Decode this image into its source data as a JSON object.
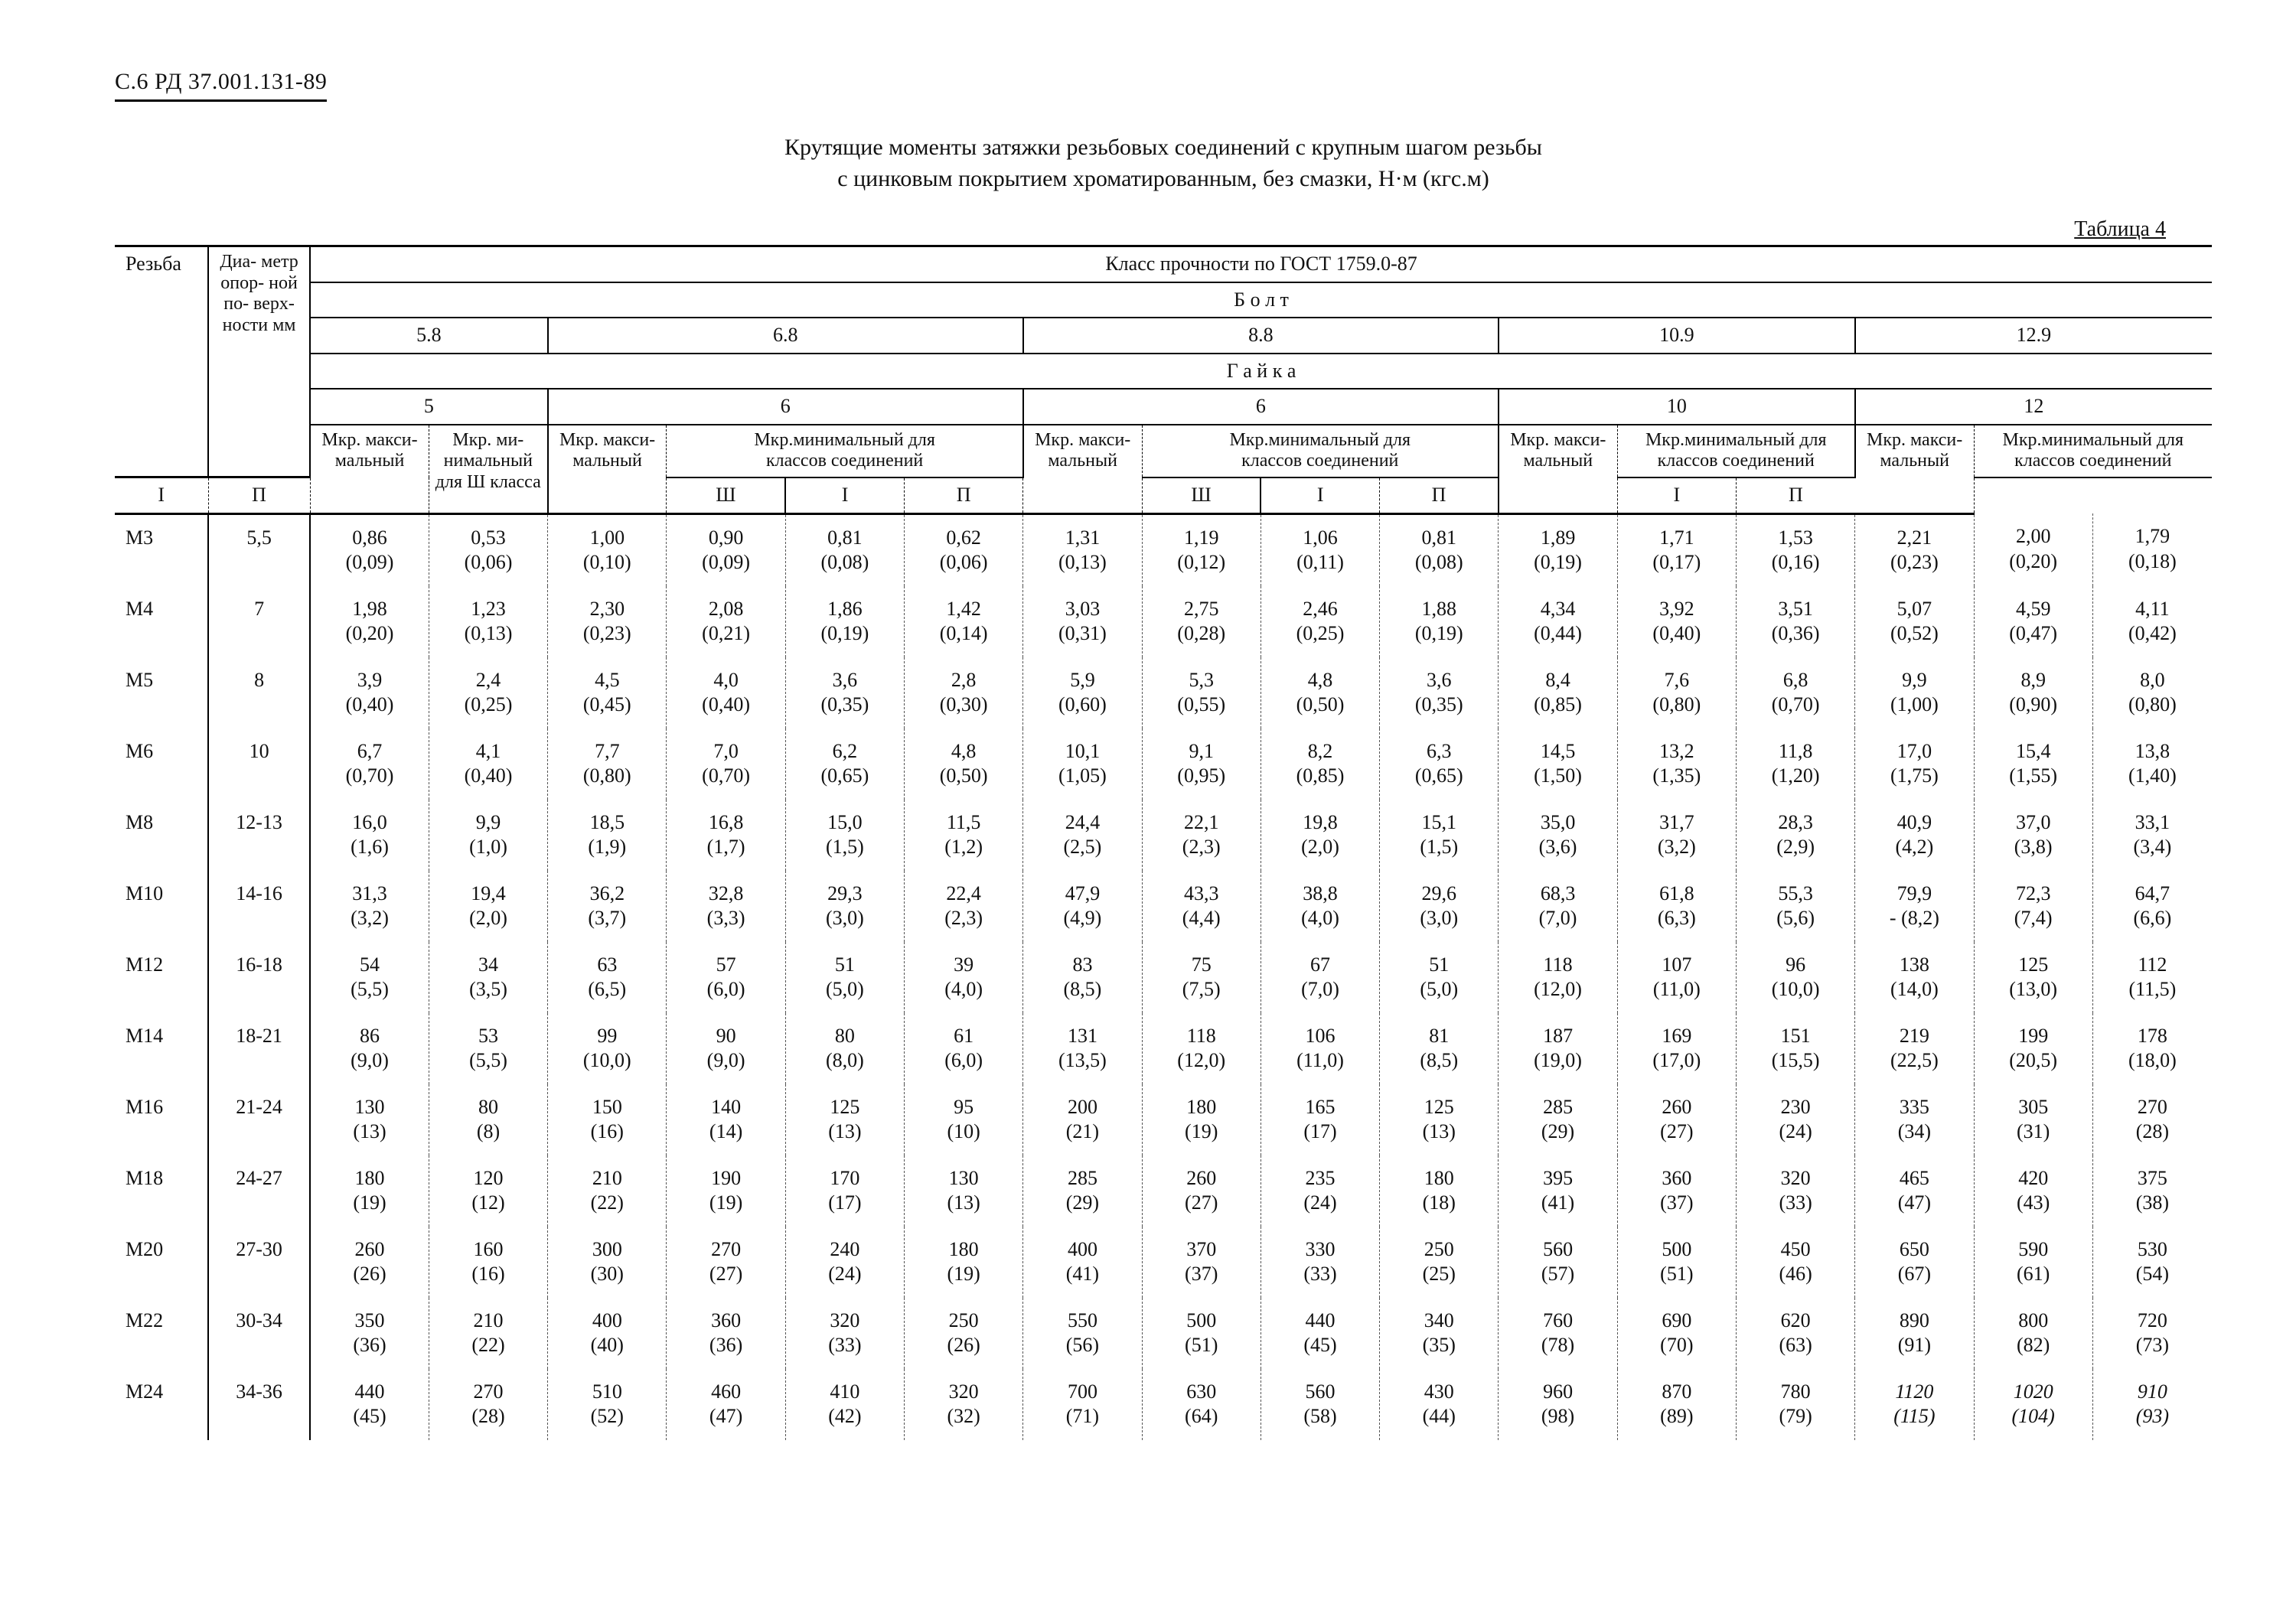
{
  "doc_code": "С.6  РД 37.001.131-89",
  "title": "Крутящие моменты затяжки резьбовых соединений с крупным шагом резьбы\nс цинковым покрытием хроматированным, без смазки, Н·м (кгс.м)",
  "table_caption": "Таблица 4",
  "header": {
    "gost_line": "Класс прочности по ГОСТ 1759.0-87",
    "bolt": "Б о л т",
    "nut": "Г а й к а",
    "col_thread": "Резьба",
    "col_diam": "Диа-\nметр\nопор-\nной\nпо-\nверх-\nности\nмм",
    "bolt_classes": [
      "5.8",
      "6.8",
      "8.8",
      "10.9",
      "12.9"
    ],
    "nut_classes": [
      "5",
      "6",
      "6",
      "10",
      "12"
    ],
    "mkr_max": "Мкр.\nмакси-\nмальный",
    "mkr_min3": "Мкр. ми-\nнимальный\nдля Ш\nкласса",
    "mkr_min_line1": "Мкр.минимальный для",
    "mkr_min_line2": "классов соединений",
    "mkr_min_cols3": [
      "I",
      "П",
      "Ш"
    ],
    "mkr_min_cols2": [
      "I",
      "П"
    ],
    "mkr_min_short": "Мкр.минимальный\nдля классов\nсоединений"
  },
  "rows": [
    {
      "thread": "М3",
      "diam": "5,5",
      "c": [
        "0,86\n(0,09)",
        "0,53\n(0,06)",
        "1,00\n(0,10)",
        "0,90\n(0,09)",
        "0,81\n(0,08)",
        "0,62\n(0,06)",
        "1,31\n(0,13)",
        "1,19\n(0,12)",
        "1,06\n(0,11)",
        "0,81\n(0,08)",
        "1,89\n(0,19)",
        "1,71\n(0,17)",
        "1,53\n(0,16)",
        "2,21\n(0,23)",
        "2,00\n(0,20)",
        "1,79\n(0,18)"
      ]
    },
    {
      "thread": "М4",
      "diam": "7",
      "c": [
        "1,98\n(0,20)",
        "1,23\n(0,13)",
        "2,30\n(0,23)",
        "2,08\n(0,21)",
        "1,86\n(0,19)",
        "1,42\n(0,14)",
        "3,03\n(0,31)",
        "2,75\n(0,28)",
        "2,46\n(0,25)",
        "1,88\n(0,19)",
        "4,34\n(0,44)",
        "3,92\n(0,40)",
        "3,51\n(0,36)",
        "5,07\n(0,52)",
        "4,59\n(0,47)",
        "4,11\n(0,42)"
      ]
    },
    {
      "thread": "М5",
      "diam": "8",
      "c": [
        "3,9\n(0,40)",
        "2,4\n(0,25)",
        "4,5\n(0,45)",
        "4,0\n(0,40)",
        "3,6\n(0,35)",
        "2,8\n(0,30)",
        "5,9\n(0,60)",
        "5,3\n(0,55)",
        "4,8\n(0,50)",
        "3,6\n(0,35)",
        "8,4\n(0,85)",
        "7,6\n(0,80)",
        "6,8\n(0,70)",
        "9,9\n(1,00)",
        "8,9\n(0,90)",
        "8,0\n(0,80)"
      ]
    },
    {
      "thread": "М6",
      "diam": "10",
      "c": [
        "6,7\n(0,70)",
        "4,1\n(0,40)",
        "7,7\n(0,80)",
        "7,0\n(0,70)",
        "6,2\n(0,65)",
        "4,8\n(0,50)",
        "10,1\n(1,05)",
        "9,1\n(0,95)",
        "8,2\n(0,85)",
        "6,3\n(0,65)",
        "14,5\n(1,50)",
        "13,2\n(1,35)",
        "11,8\n(1,20)",
        "17,0\n(1,75)",
        "15,4\n(1,55)",
        "13,8\n(1,40)"
      ]
    },
    {
      "thread": "М8",
      "diam": "12-13",
      "c": [
        "16,0\n(1,6)",
        "9,9\n(1,0)",
        "18,5\n(1,9)",
        "16,8\n(1,7)",
        "15,0\n(1,5)",
        "11,5\n(1,2)",
        "24,4\n(2,5)",
        "22,1\n(2,3)",
        "19,8\n(2,0)",
        "15,1\n(1,5)",
        "35,0\n(3,6)",
        "31,7\n(3,2)",
        "28,3\n(2,9)",
        "40,9\n(4,2)",
        "37,0\n(3,8)",
        "33,1\n(3,4)"
      ]
    },
    {
      "thread": "М10",
      "diam": "14-16",
      "c": [
        "31,3\n(3,2)",
        "19,4\n(2,0)",
        "36,2\n(3,7)",
        "32,8\n(3,3)",
        "29,3\n(3,0)",
        "22,4\n(2,3)",
        "47,9\n(4,9)",
        "43,3\n(4,4)",
        "38,8\n(4,0)",
        "29,6\n(3,0)",
        "68,3\n(7,0)",
        "61,8\n(6,3)",
        "55,3\n(5,6)",
        "79,9\n- (8,2)",
        "72,3\n(7,4)",
        "64,7\n(6,6)"
      ]
    },
    {
      "thread": "М12",
      "diam": "16-18",
      "c": [
        "54\n(5,5)",
        "34\n(3,5)",
        "63\n(6,5)",
        "57\n(6,0)",
        "51\n(5,0)",
        "39\n(4,0)",
        "83\n(8,5)",
        "75\n(7,5)",
        "67\n(7,0)",
        "51\n(5,0)",
        "118\n(12,0)",
        "107\n(11,0)",
        "96\n(10,0)",
        "138\n(14,0)",
        "125\n(13,0)",
        "112\n(11,5)"
      ]
    },
    {
      "thread": "М14",
      "diam": "18-21",
      "c": [
        "86\n(9,0)",
        "53\n(5,5)",
        "99\n(10,0)",
        "90\n(9,0)",
        "80\n(8,0)",
        "61\n(6,0)",
        "131\n(13,5)",
        "118\n(12,0)",
        "106\n(11,0)",
        "81\n(8,5)",
        "187\n(19,0)",
        "169\n(17,0)",
        "151\n(15,5)",
        "219\n(22,5)",
        "199\n(20,5)",
        "178\n(18,0)"
      ]
    },
    {
      "thread": "М16",
      "diam": "21-24",
      "c": [
        "130\n(13)",
        "80\n(8)",
        "150\n(16)",
        "140\n(14)",
        "125\n(13)",
        "95\n(10)",
        "200\n(21)",
        "180\n(19)",
        "165\n(17)",
        "125\n(13)",
        "285\n(29)",
        "260\n(27)",
        "230\n(24)",
        "335\n(34)",
        "305\n(31)",
        "270\n(28)"
      ]
    },
    {
      "thread": "М18",
      "diam": "24-27",
      "c": [
        "180\n(19)",
        "120\n(12)",
        "210\n(22)",
        "190\n(19)",
        "170\n(17)",
        "130\n(13)",
        "285\n(29)",
        "260\n(27)",
        "235\n(24)",
        "180\n(18)",
        "395\n(41)",
        "360\n(37)",
        "320\n(33)",
        "465\n(47)",
        "420\n(43)",
        "375\n(38)"
      ]
    },
    {
      "thread": "М20",
      "diam": "27-30",
      "c": [
        "260\n(26)",
        "160\n(16)",
        "300\n(30)",
        "270\n(27)",
        "240\n(24)",
        "180\n(19)",
        "400\n(41)",
        "370\n(37)",
        "330\n(33)",
        "250\n(25)",
        "560\n(57)",
        "500\n(51)",
        "450\n(46)",
        "650\n(67)",
        "590\n(61)",
        "530\n(54)"
      ]
    },
    {
      "thread": "М22",
      "diam": "30-34",
      "c": [
        "350\n(36)",
        "210\n(22)",
        "400\n(40)",
        "360\n(36)",
        "320\n(33)",
        "250\n(26)",
        "550\n(56)",
        "500\n(51)",
        "440\n(45)",
        "340\n(35)",
        "760\n(78)",
        "690\n(70)",
        "620\n(63)",
        "890\n(91)",
        "800\n(82)",
        "720\n(73)"
      ]
    },
    {
      "thread": "М24",
      "diam": "34-36",
      "c": [
        "440\n(45)",
        "270\n(28)",
        "510\n(52)",
        "460\n(47)",
        "410\n(42)",
        "320\n(32)",
        "700\n(71)",
        "630\n(64)",
        "560\n(58)",
        "430\n(44)",
        "960\n(98)",
        "870\n(89)",
        "780\n(79)",
        "",
        "",
        ""
      ],
      "hand": [
        "1120\n(115)",
        "1020\n(104)",
        "910\n(93)"
      ]
    }
  ]
}
